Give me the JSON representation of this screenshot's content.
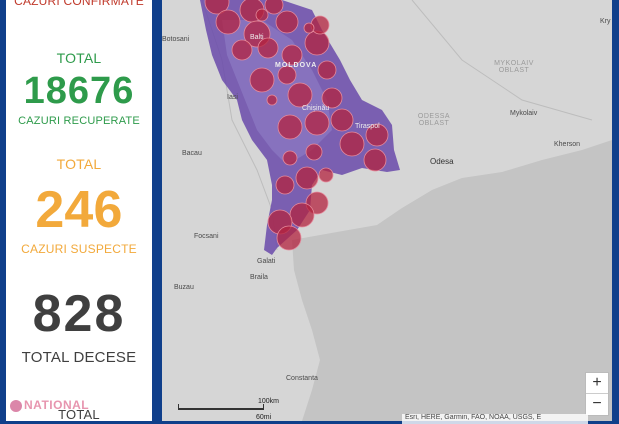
{
  "stats": {
    "confirmed_label": "CAZURI CONFIRMATE",
    "total_label_1": "TOTAL",
    "recovered_value": "18676",
    "recovered_label": "CAZURI RECUPERATE",
    "total_label_2": "TOTAL",
    "suspect_value": "246",
    "suspect_label": "CAZURI SUSPECTE",
    "deaths_value": "828",
    "deaths_label": "TOTAL DECESE",
    "total_label_3": "TOTAL"
  },
  "watermark": "NATIONAL",
  "map": {
    "labels": {
      "botosani": "Botosani",
      "balti": "Balti",
      "moldova": "MOLDOVA",
      "iasi": "Iasi",
      "chisinau": "Chișinău",
      "tiraspol": "Tiraspol",
      "mykolaiv_oblast": "MYKOLAIV\nOBLAST",
      "mykolaiv": "Mykolaiv",
      "odessa_oblast": "ODESSA\nOBLAST",
      "odesa": "Odesa",
      "kherson": "Kherson",
      "bacau": "Bacau",
      "focsani": "Focsani",
      "galati": "Galati",
      "braila": "Braila",
      "buzau": "Buzau",
      "constanta": "Constanta",
      "kry": "Kry"
    },
    "zoom_in": "+",
    "zoom_out": "−",
    "scale_km": "100km",
    "scale_mi": "60mi",
    "attribution": "Esri, HERE, Garmin, FAO, NOAA, USGS, E"
  },
  "colors": {
    "recovered": "#2e9b4b",
    "suspect": "#f2a93b",
    "deaths": "#3f3f3f",
    "confirmed": "#c0392b",
    "frame": "#103f8b",
    "region_fill": "#5b3d9e",
    "bubble": "#b3233f"
  }
}
